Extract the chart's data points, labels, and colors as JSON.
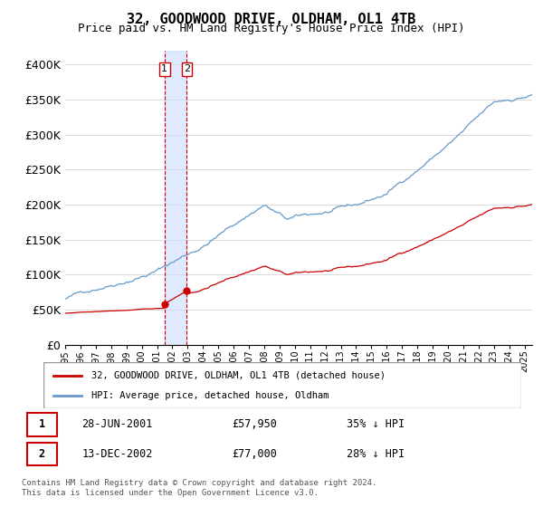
{
  "title": "32, GOODWOOD DRIVE, OLDHAM, OL1 4TB",
  "subtitle": "Price paid vs. HM Land Registry's House Price Index (HPI)",
  "ylabel_ticks": [
    "£0",
    "£50K",
    "£100K",
    "£150K",
    "£200K",
    "£250K",
    "£300K",
    "£350K",
    "£400K"
  ],
  "ytick_values": [
    0,
    50000,
    100000,
    150000,
    200000,
    250000,
    300000,
    350000,
    400000
  ],
  "ylim": [
    0,
    420000
  ],
  "sale1_date_num": 2001.49,
  "sale1_price": 57950,
  "sale2_date_num": 2002.95,
  "sale2_price": 77000,
  "legend_entry1": "32, GOODWOOD DRIVE, OLDHAM, OL1 4TB (detached house)",
  "legend_entry2": "HPI: Average price, detached house, Oldham",
  "table_row1": [
    "1",
    "28-JUN-2001",
    "£57,950",
    "35% ↓ HPI"
  ],
  "table_row2": [
    "2",
    "13-DEC-2002",
    "£77,000",
    "28% ↓ HPI"
  ],
  "footnote": "Contains HM Land Registry data © Crown copyright and database right 2024.\nThis data is licensed under the Open Government Licence v3.0.",
  "hpi_color": "#6699cc",
  "price_color": "#cc0000",
  "shade_color": "#ccddff",
  "marker_color": "#cc0000"
}
